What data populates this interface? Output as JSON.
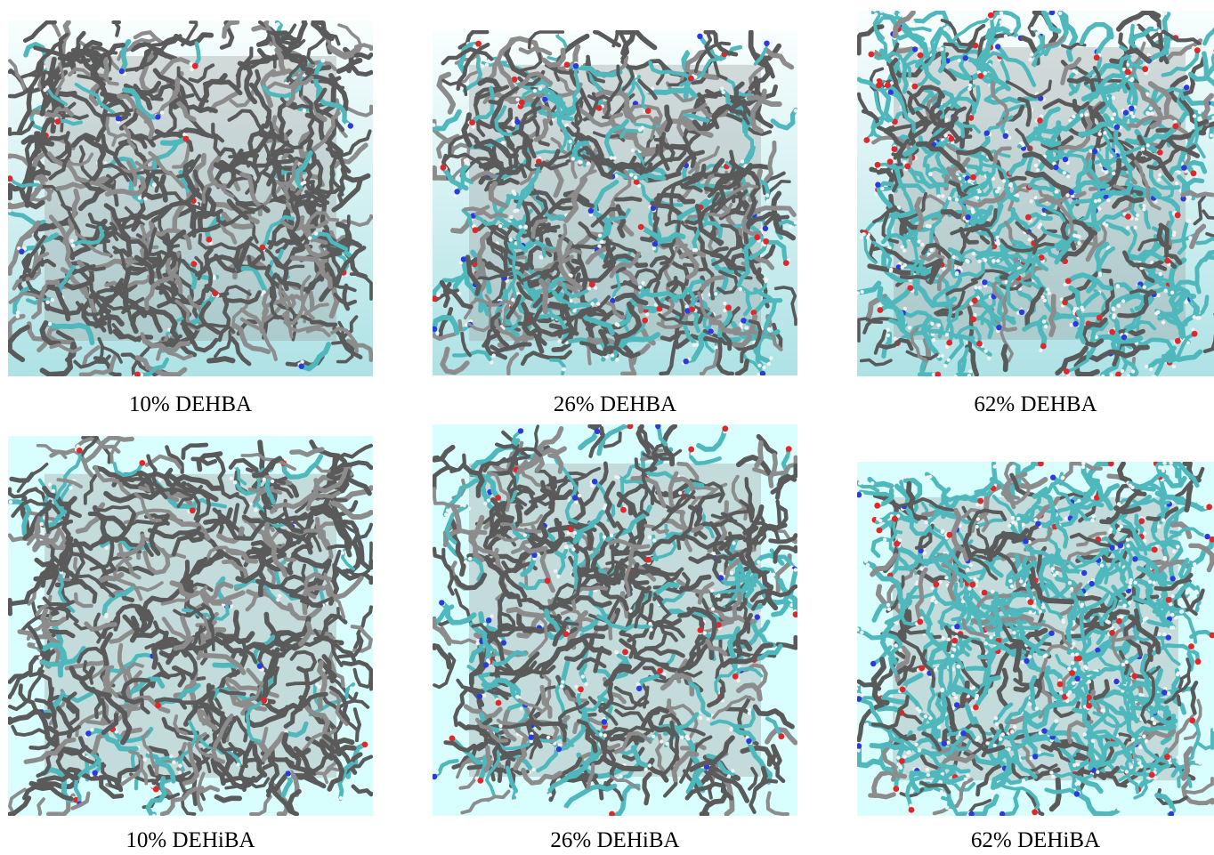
{
  "colors": {
    "background_top_row_start": "#f8fefe",
    "background_top_row_end": "#aee2e5",
    "background_bottom_row": "#d9fefe",
    "solvent_gray": "#5a5a5a",
    "solvent_gray_light": "#8c8c8c",
    "extractant_cyan": "#4fb8bd",
    "oxygen_red": "#e0282a",
    "nitrogen_blue": "#2a3adf",
    "hydrogen_white": "#f2f2f2"
  },
  "panels": [
    {
      "caption": "10% DEHBA",
      "extractant_fraction": 0.1,
      "background": "gradient"
    },
    {
      "caption": "26% DEHBA",
      "extractant_fraction": 0.26,
      "background": "gradient"
    },
    {
      "caption": "62% DEHBA",
      "extractant_fraction": 0.62,
      "background": "gradient"
    },
    {
      "caption": "10% DEHiBA",
      "extractant_fraction": 0.1,
      "background": "flat"
    },
    {
      "caption": "26% DEHiBA",
      "extractant_fraction": 0.26,
      "background": "flat"
    },
    {
      "caption": "62% DEHiBA",
      "extractant_fraction": 0.62,
      "background": "flat"
    }
  ]
}
